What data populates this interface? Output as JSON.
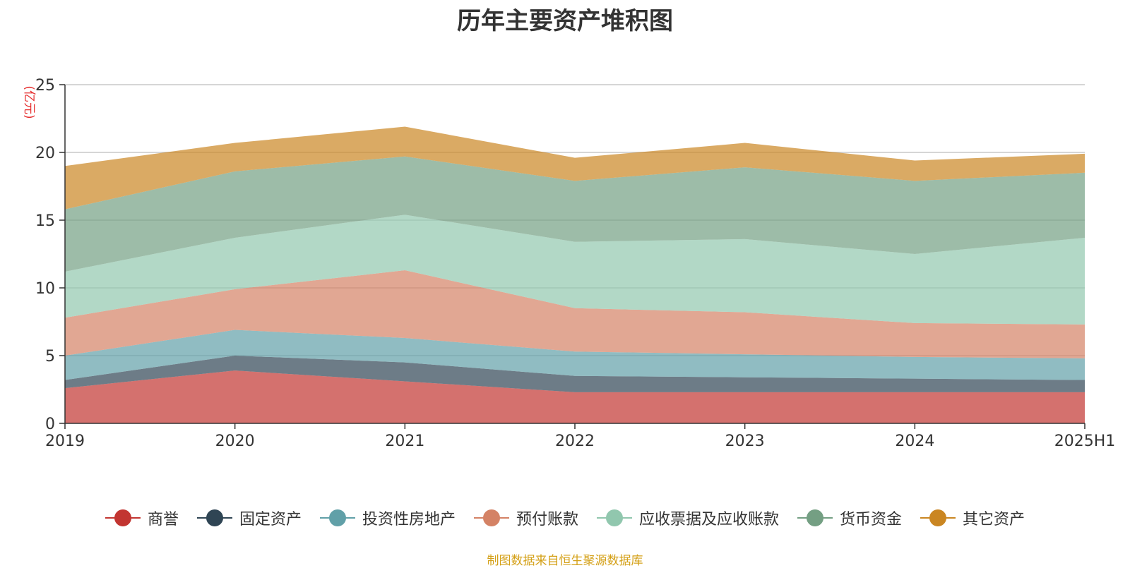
{
  "chart_data": {
    "type": "area",
    "stacked": true,
    "title": "历年主要资产堆积图",
    "ylabel": "(亿元)",
    "xlabel": "",
    "categories": [
      "2019",
      "2020",
      "2021",
      "2022",
      "2023",
      "2024",
      "2025H1"
    ],
    "ylim": [
      0,
      25
    ],
    "yticks": [
      0,
      5,
      10,
      15,
      20,
      25
    ],
    "grid": true,
    "legend_position": "bottom",
    "series": [
      {
        "name": "商誉",
        "color": "#c23531",
        "values": [
          2.6,
          3.9,
          3.1,
          2.3,
          2.3,
          2.3,
          2.3
        ]
      },
      {
        "name": "固定资产",
        "color": "#2f4554",
        "values": [
          0.6,
          1.1,
          1.4,
          1.2,
          1.1,
          1.0,
          0.9
        ]
      },
      {
        "name": "投资性房地产",
        "color": "#61a0a8",
        "values": [
          1.8,
          1.9,
          1.8,
          1.8,
          1.7,
          1.6,
          1.6
        ]
      },
      {
        "name": "预付账款",
        "color": "#d48265",
        "values": [
          2.8,
          3.0,
          5.0,
          3.2,
          3.1,
          2.5,
          2.5
        ]
      },
      {
        "name": "应收票据及应收账款",
        "color": "#91c7ae",
        "values": [
          3.4,
          3.8,
          4.1,
          4.9,
          5.4,
          5.1,
          6.4
        ]
      },
      {
        "name": "货币资金",
        "color": "#749f83",
        "values": [
          4.6,
          4.9,
          4.3,
          4.5,
          5.3,
          5.4,
          4.8
        ]
      },
      {
        "name": "其它资产",
        "color": "#ca8622",
        "values": [
          3.2,
          2.1,
          2.2,
          1.7,
          1.8,
          1.5,
          1.4
        ]
      }
    ]
  },
  "source_note": "制图数据来自恒生聚源数据库"
}
